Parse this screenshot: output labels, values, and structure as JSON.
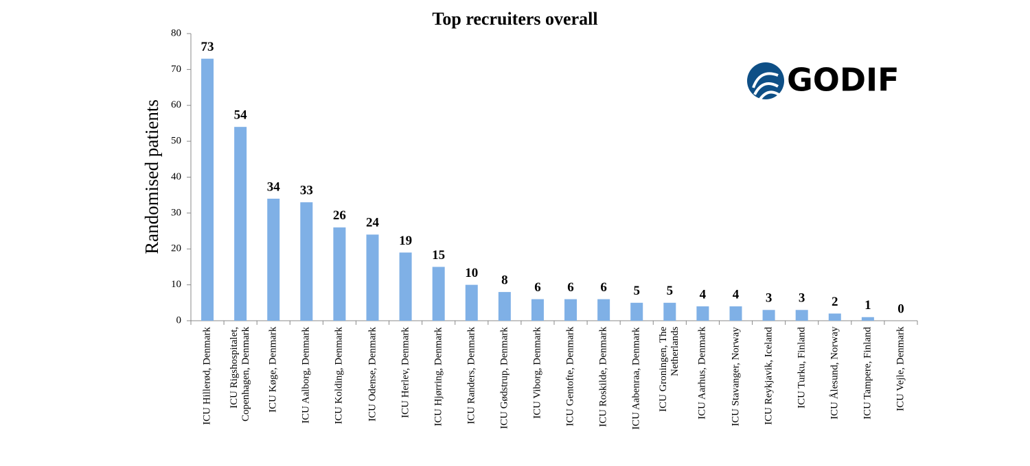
{
  "chart_data": {
    "type": "bar",
    "title": "Top recruiters overall",
    "y_label": "Randomised patients",
    "logo": "GODIF",
    "categories": [
      "ICU Hillerød, Denmark",
      "ICU Rigshospitalet, Copenhagen, Denmark",
      "ICU Køge, Denmark",
      "ICU Aalborg, Denmark",
      "ICU Kolding, Denmark",
      "ICU Odense, Denmark",
      "ICU Herlev, Denmark",
      "ICU Hjørring, Denmark",
      "ICU Randers, Denmark",
      "ICU Gødstrup, Denmark",
      "ICU Viborg, Denmark",
      "ICU Gentofte, Denmark",
      "ICU Roskilde, Denmark",
      "ICU Aabenraa, Denmark",
      "ICU Groningen, The Netherlands",
      "ICU Aarhus, Denmark",
      "ICU Stavanger, Norway",
      "ICU Reykjavik, Iceland",
      "ICU Turku, Finland",
      "ICU Ålesund, Norway",
      "ICU Tampere, Finland",
      "ICU Vejle, Denmark"
    ],
    "values": [
      73,
      54,
      34,
      33,
      26,
      24,
      19,
      15,
      10,
      8,
      6,
      6,
      6,
      5,
      5,
      4,
      4,
      3,
      3,
      2,
      1,
      0
    ],
    "color": "#7fb0e6",
    "ylim": [
      0,
      80
    ],
    "yticks": [
      0,
      10,
      20,
      30,
      40,
      50,
      60,
      70,
      80
    ]
  }
}
